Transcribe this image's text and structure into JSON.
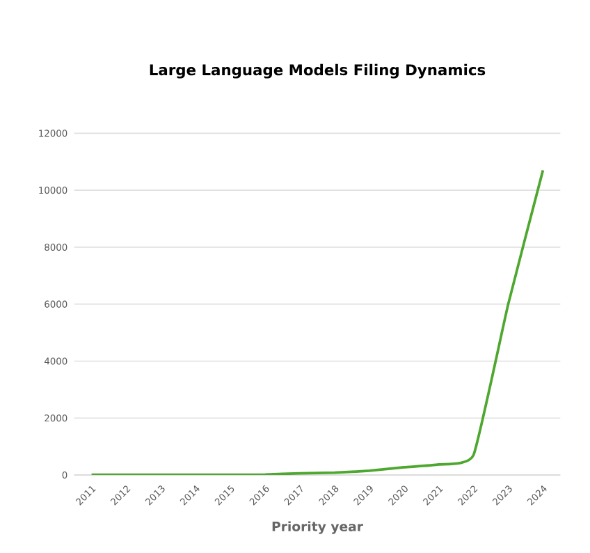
{
  "chart_data": {
    "type": "line",
    "title": "Large Language Models Filing Dynamics",
    "xlabel": "Priority year",
    "categories": [
      "2011",
      "2012",
      "2013",
      "2014",
      "2015",
      "2016",
      "2017",
      "2018",
      "2019",
      "2020",
      "2021",
      "2022",
      "2023",
      "2024"
    ],
    "series": [
      {
        "color": "#4ea72e",
        "values": [
          10,
          10,
          10,
          10,
          10,
          15,
          60,
          80,
          150,
          270,
          370,
          700,
          6000,
          10700
        ]
      }
    ],
    "ylim": [
      0,
      12000
    ],
    "yticks": [
      0,
      2000,
      4000,
      6000,
      8000,
      10000,
      12000
    ],
    "grid": "y",
    "marker": "none",
    "line_style": "solid"
  }
}
